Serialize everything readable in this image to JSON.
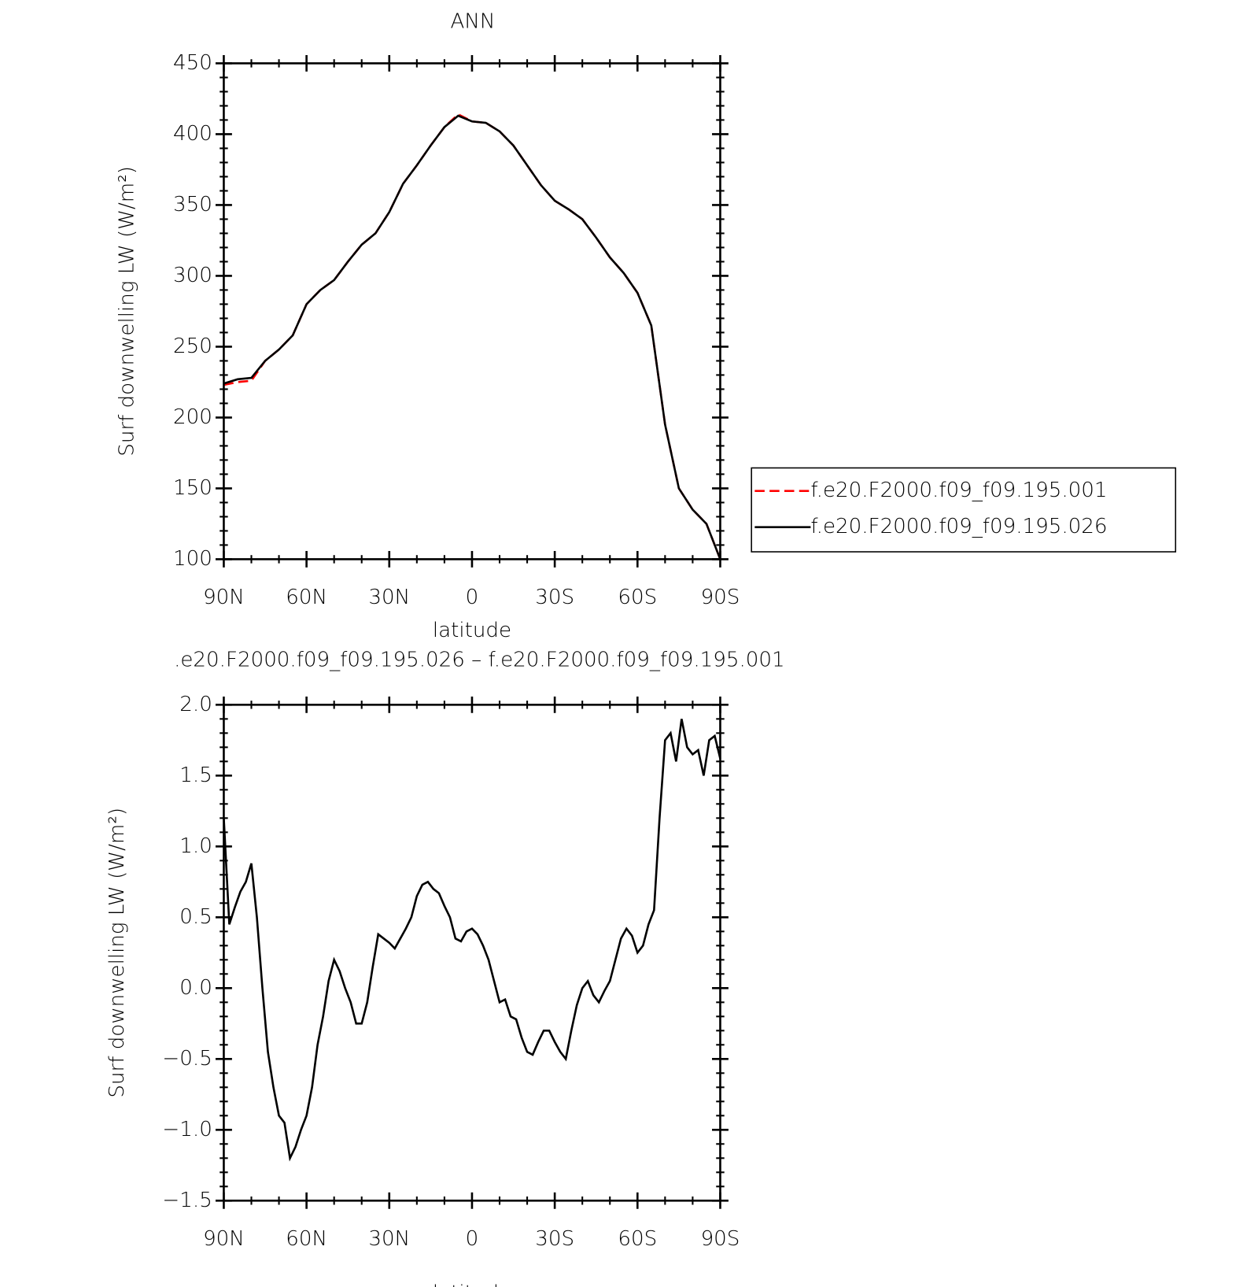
{
  "chart_data": [
    {
      "type": "line",
      "title": "ANN",
      "xlabel": "latitude",
      "ylabel": "Surf downwelling LW (W/m²)",
      "x": [
        90,
        85,
        80,
        75,
        70,
        65,
        60,
        55,
        50,
        45,
        40,
        35,
        30,
        25,
        20,
        15,
        10,
        5,
        0,
        -5,
        -10,
        -15,
        -20,
        -25,
        -30,
        -35,
        -40,
        -45,
        -50,
        -55,
        -60,
        -65,
        -70,
        -75,
        -80,
        -85,
        -90
      ],
      "series": [
        {
          "name": "f.e20.F2000.f09_f09.195.001",
          "color": "#ff0000",
          "line_style": "dashed",
          "values": [
            223,
            225,
            226,
            240,
            248,
            258,
            280,
            290,
            297,
            310,
            322,
            330,
            345,
            365,
            378,
            392,
            405,
            414,
            409,
            408,
            402,
            392,
            378,
            364,
            353,
            347,
            340,
            327,
            313,
            302,
            288,
            265,
            195,
            150,
            135,
            125,
            100
          ]
        },
        {
          "name": "f.e20.F2000.f09_f09.195.026",
          "color": "#000000",
          "line_style": "solid",
          "values": [
            224,
            227,
            228,
            240,
            248,
            258,
            280,
            290,
            297,
            310,
            322,
            330,
            345,
            365,
            378,
            392,
            405,
            413,
            409,
            408,
            402,
            392,
            378,
            364,
            353,
            347,
            340,
            327,
            313,
            302,
            288,
            265,
            195,
            150,
            135,
            125,
            100
          ]
        }
      ],
      "xlim": [
        90,
        -90
      ],
      "xticks": [
        {
          "value": 90,
          "label": "90N"
        },
        {
          "value": 60,
          "label": "60N"
        },
        {
          "value": 30,
          "label": "30N"
        },
        0,
        {
          "value": -30,
          "label": "30S"
        },
        {
          "value": -60,
          "label": "60S"
        },
        {
          "value": -90,
          "label": "90S"
        }
      ],
      "ylim": [
        100,
        450
      ],
      "yticks": [
        100,
        150,
        200,
        250,
        300,
        350,
        400,
        450
      ],
      "legend": "right"
    },
    {
      "type": "line",
      "title": ".e20.F2000.f09_f09.195.026 – f.e20.F2000.f09_f09.195.001",
      "xlabel": "latitude",
      "ylabel": "Surf downwelling LW (W/m²)",
      "x": [
        90,
        88,
        86,
        84,
        82,
        80,
        78,
        76,
        74,
        72,
        70,
        68,
        66,
        64,
        62,
        60,
        58,
        56,
        54,
        52,
        50,
        48,
        46,
        44,
        42,
        40,
        38,
        36,
        34,
        32,
        30,
        28,
        26,
        24,
        22,
        20,
        18,
        16,
        14,
        12,
        10,
        8,
        6,
        4,
        2,
        0,
        -2,
        -4,
        -6,
        -8,
        -10,
        -12,
        -14,
        -16,
        -18,
        -20,
        -22,
        -24,
        -26,
        -28,
        -30,
        -32,
        -34,
        -36,
        -38,
        -40,
        -42,
        -44,
        -46,
        -48,
        -50,
        -52,
        -54,
        -56,
        -58,
        -60,
        -62,
        -64,
        -66,
        -68,
        -70,
        -72,
        -74,
        -76,
        -78,
        -80,
        -82,
        -84,
        -86,
        -88,
        -90
      ],
      "values": [
        1.2,
        0.45,
        0.57,
        0.68,
        0.75,
        0.88,
        0.5,
        0.0,
        -0.45,
        -0.7,
        -0.9,
        -0.95,
        -1.2,
        -1.12,
        -1.0,
        -0.9,
        -0.7,
        -0.4,
        -0.2,
        0.05,
        0.2,
        0.12,
        0.0,
        -0.1,
        -0.25,
        -0.25,
        -0.1,
        0.15,
        0.38,
        0.35,
        0.32,
        0.28,
        0.35,
        0.42,
        0.5,
        0.65,
        0.73,
        0.75,
        0.7,
        0.67,
        0.58,
        0.5,
        0.35,
        0.33,
        0.4,
        0.42,
        0.38,
        0.3,
        0.2,
        0.05,
        -0.1,
        -0.08,
        -0.2,
        -0.22,
        -0.35,
        -0.45,
        -0.47,
        -0.38,
        -0.3,
        -0.3,
        -0.38,
        -0.45,
        -0.5,
        -0.3,
        -0.12,
        0.0,
        0.05,
        -0.05,
        -0.1,
        -0.02,
        0.05,
        0.2,
        0.35,
        0.42,
        0.37,
        0.25,
        0.3,
        0.45,
        0.55,
        1.2,
        1.75,
        1.8,
        1.6,
        1.9,
        1.7,
        1.65,
        1.68,
        1.5,
        1.75,
        1.78,
        1.62
      ],
      "color": "#000000",
      "xlim": [
        90,
        -90
      ],
      "xticks": [
        {
          "value": 90,
          "label": "90N"
        },
        {
          "value": 60,
          "label": "60N"
        },
        {
          "value": 30,
          "label": "30N"
        },
        0,
        {
          "value": -30,
          "label": "30S"
        },
        {
          "value": -60,
          "label": "60S"
        },
        {
          "value": -90,
          "label": "90S"
        }
      ],
      "ylim": [
        -1.5,
        2
      ],
      "yticks": [
        {
          "value": -1.5,
          "label": "−1.5"
        },
        {
          "value": -1,
          "label": "−1.0"
        },
        {
          "value": -0.5,
          "label": "−0.5"
        },
        {
          "value": 0,
          "label": "0.0"
        },
        0.5,
        {
          "value": 1,
          "label": "1.0"
        },
        1.5,
        {
          "value": 2,
          "label": "2.0"
        }
      ]
    }
  ]
}
